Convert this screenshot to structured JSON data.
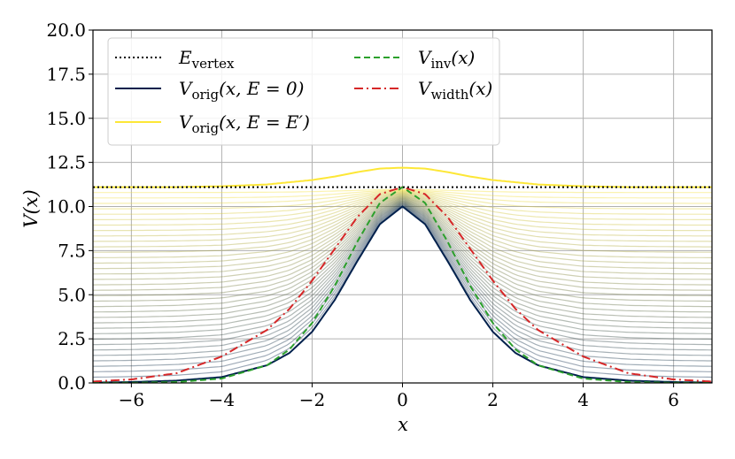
{
  "chart_data": {
    "type": "line",
    "xlabel": "x",
    "ylabel": "V(x)",
    "xlim": [
      -6.85,
      6.85
    ],
    "ylim": [
      0,
      20
    ],
    "grid": true,
    "xticks": [
      -6,
      -4,
      -2,
      0,
      2,
      4,
      6
    ],
    "xtick_labels": [
      "−6",
      "−4",
      "−2",
      "0",
      "2",
      "4",
      "6"
    ],
    "yticks": [
      0,
      2.5,
      5,
      7.5,
      10,
      12.5,
      15,
      17.5,
      20
    ],
    "ytick_labels": [
      "0.0",
      "2.5",
      "5.0",
      "7.5",
      "10.0",
      "12.5",
      "15.0",
      "17.5",
      "20.0"
    ],
    "legend": {
      "placement": "upper-left",
      "entries": [
        {
          "key": "E_vertex",
          "label": "E",
          "sub": "vertex",
          "suffix": "",
          "color": "#000000",
          "style": "dotted"
        },
        {
          "key": "V_orig_0",
          "label": "V",
          "sub": "orig",
          "suffix": "(x, E = 0)",
          "color": "#00204c",
          "style": "solid"
        },
        {
          "key": "V_orig_Ep",
          "label": "V",
          "sub": "orig",
          "suffix": "(x, E = E′)",
          "color": "#fde737",
          "style": "solid"
        },
        {
          "key": "V_inv",
          "label": "V",
          "sub": "inv",
          "suffix": "(x)",
          "color": "#2ca02c",
          "style": "dashed"
        },
        {
          "key": "V_width",
          "label": "V",
          "sub": "width",
          "suffix": "(x)",
          "color": "#d62728",
          "style": "dashdot"
        }
      ]
    },
    "series": [
      {
        "name": "E_vertex",
        "color": "#000000",
        "x": [
          -6.85,
          6.85
        ],
        "y": [
          11.1,
          11.1
        ]
      },
      {
        "name": "V_orig(x, E=0)",
        "color": "#00204c",
        "x": [
          -6.85,
          -6,
          -5,
          -4,
          -3,
          -2.5,
          -2,
          -1.5,
          -1,
          -0.5,
          0,
          0.5,
          1,
          1.5,
          2,
          2.5,
          3,
          4,
          5,
          6,
          6.85
        ],
        "y": [
          0.02,
          0.05,
          0.13,
          0.33,
          1.0,
          1.7,
          2.9,
          4.7,
          6.9,
          9.0,
          10.0,
          9.0,
          6.9,
          4.7,
          2.9,
          1.7,
          1.0,
          0.33,
          0.13,
          0.05,
          0.02
        ]
      },
      {
        "name": "V_orig(x, E=E')",
        "color": "#fde737",
        "x": [
          -6.85,
          -5,
          -4,
          -3,
          -2,
          -1.5,
          -1,
          -0.5,
          0,
          0.5,
          1,
          1.5,
          2,
          3,
          4,
          5,
          6.85
        ],
        "y": [
          11.1,
          11.1,
          11.15,
          11.25,
          11.5,
          11.7,
          11.95,
          12.15,
          12.2,
          12.15,
          11.95,
          11.7,
          11.5,
          11.25,
          11.15,
          11.1,
          11.1
        ]
      },
      {
        "name": "V_inv(x)",
        "color": "#2ca02c",
        "x": [
          -6.85,
          -6,
          -5,
          -4,
          -3,
          -2.5,
          -2,
          -1.5,
          -1,
          -0.5,
          0,
          0.5,
          1,
          1.5,
          2,
          2.5,
          3,
          4,
          5,
          6,
          6.85
        ],
        "y": [
          0.0,
          0.01,
          0.05,
          0.25,
          1.0,
          1.9,
          3.4,
          5.5,
          8.0,
          10.2,
          11.1,
          10.2,
          8.0,
          5.5,
          3.4,
          1.9,
          1.0,
          0.25,
          0.05,
          0.01,
          0.0
        ]
      },
      {
        "name": "V_width(x)",
        "color": "#d62728",
        "x": [
          -6.85,
          -6,
          -5,
          -4,
          -3,
          -2.5,
          -2,
          -1.5,
          -1,
          -0.5,
          0,
          0.5,
          1,
          1.5,
          2,
          2.5,
          3,
          4,
          5,
          6,
          6.85
        ],
        "y": [
          0.08,
          0.2,
          0.55,
          1.5,
          3.0,
          4.2,
          5.8,
          7.6,
          9.4,
          10.7,
          11.1,
          10.7,
          9.4,
          7.6,
          5.8,
          4.2,
          3.0,
          1.5,
          0.55,
          0.2,
          0.08
        ]
      }
    ],
    "family": {
      "description": "family of V_orig curves for E from 0 to E'",
      "count": 36,
      "E_max": 11.1,
      "color_start": "#00204c",
      "color_end": "#fde737"
    }
  }
}
